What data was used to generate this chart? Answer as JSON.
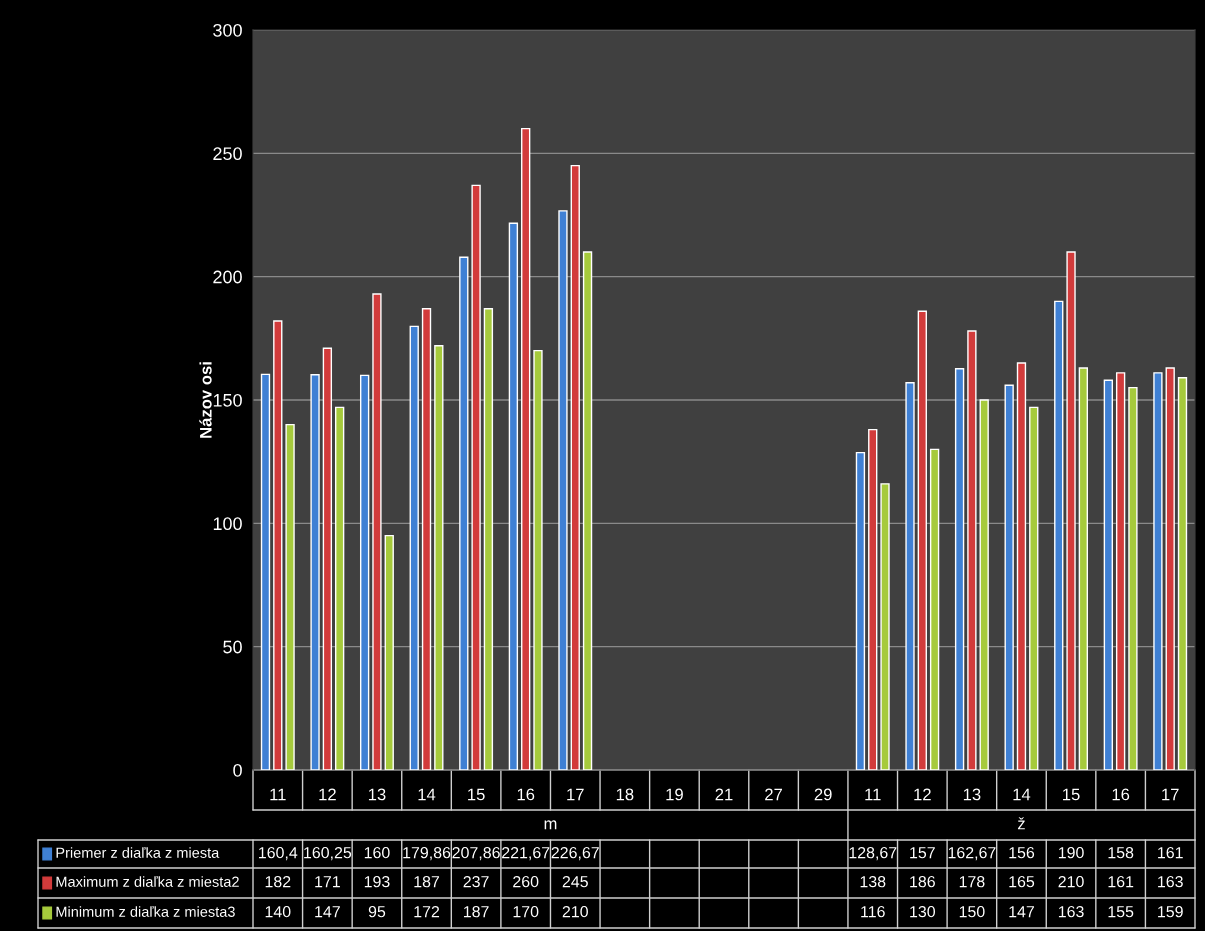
{
  "chart_data": {
    "type": "bar",
    "ylabel": "Názov osi",
    "categories": [
      "11",
      "12",
      "13",
      "14",
      "15",
      "16",
      "17",
      "18",
      "19",
      "21",
      "27",
      "29",
      "11",
      "12",
      "13",
      "14",
      "15",
      "16",
      "17"
    ],
    "series": [
      {
        "name": "Priemer z diaľka z miesta",
        "color": "#3f80d4",
        "values": [
          160.4,
          160.25,
          160,
          179.86,
          207.86,
          221.67,
          226.67,
          null,
          null,
          null,
          null,
          null,
          128.67,
          157,
          162.67,
          156,
          190,
          158,
          161
        ],
        "value_labels": [
          "160,4",
          "160,25",
          "160",
          "179,86",
          "207,86",
          "221,67",
          "226,67",
          null,
          null,
          null,
          null,
          null,
          "128,67",
          "157",
          "162,67",
          "156",
          "190",
          "158",
          "161"
        ]
      },
      {
        "name": "Maximum z diaľka z miesta2",
        "color": "#d23b3b",
        "values": [
          182,
          171,
          193,
          187,
          237,
          260,
          245,
          null,
          null,
          null,
          null,
          null,
          138,
          186,
          178,
          165,
          210,
          161,
          163
        ],
        "value_labels": [
          "182",
          "171",
          "193",
          "187",
          "237",
          "260",
          "245",
          null,
          null,
          null,
          null,
          null,
          "138",
          "186",
          "178",
          "165",
          "210",
          "161",
          "163"
        ]
      },
      {
        "name": "Minimum z diaľka z miesta3",
        "color": "#a6ca3c",
        "values": [
          140,
          147,
          95,
          172,
          187,
          170,
          210,
          null,
          null,
          null,
          null,
          null,
          116,
          130,
          150,
          147,
          163,
          155,
          159
        ],
        "value_labels": [
          "140",
          "147",
          "95",
          "172",
          "187",
          "170",
          "210",
          null,
          null,
          null,
          null,
          null,
          "116",
          "130",
          "150",
          "147",
          "163",
          "155",
          "159"
        ]
      }
    ],
    "annotations": [
      "m",
      "ž"
    ],
    "ylim": [
      0,
      300
    ],
    "yticks": [
      0,
      50,
      100,
      150,
      200,
      250,
      300
    ],
    "grid": "y",
    "legend": "bottom"
  }
}
